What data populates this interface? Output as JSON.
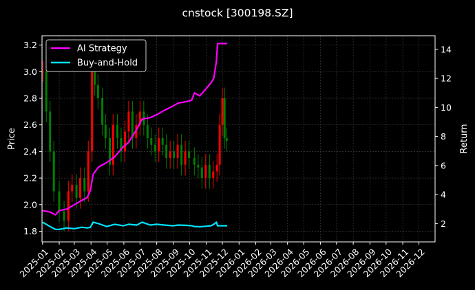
{
  "chart_data": {
    "type": "line",
    "title": "cnstock [300198.SZ]",
    "xlabel": "",
    "ylabel": "Price",
    "y2label": "Return",
    "grid": true,
    "legend_placement": "top-left",
    "x_ticks": [
      "2025-01",
      "2025-02",
      "2025-03",
      "2025-04",
      "2025-05",
      "2025-06",
      "2025-07",
      "2025-08",
      "2025-09",
      "2025-10",
      "2025-11",
      "2025-12",
      "2026-01",
      "2026-02",
      "2026-03",
      "2026-04",
      "2026-05",
      "2026-06",
      "2026-07",
      "2026-08",
      "2026-09",
      "2026-10",
      "2026-11",
      "2026-12"
    ],
    "x_range": [
      "2024-12-31",
      "2026-12-31"
    ],
    "ylim": [
      1.72,
      3.27
    ],
    "y_ticks": [
      1.8,
      2.0,
      2.2,
      2.4,
      2.6,
      2.8,
      3.0,
      3.2
    ],
    "y2lim": [
      0.74,
      14.94
    ],
    "y2_ticks": [
      2,
      4,
      6,
      8,
      10,
      12,
      14
    ],
    "colors": {
      "background": "#000000",
      "grid": "#3a3a3a",
      "up_candle": "#ff0000",
      "down_candle": "#008000",
      "ai_strategy": "#ff00ff",
      "buy_and_hold": "#00e5ff"
    },
    "price_series": {
      "name": "Price",
      "x": [
        "2025-01-02",
        "2025-01-08",
        "2025-01-15",
        "2025-01-22",
        "2025-02-01",
        "2025-02-10",
        "2025-02-18",
        "2025-02-25",
        "2025-03-05",
        "2025-03-12",
        "2025-03-20",
        "2025-03-27",
        "2025-04-03",
        "2025-04-08",
        "2025-04-14",
        "2025-04-22",
        "2025-04-28",
        "2025-05-06",
        "2025-05-12",
        "2025-05-20",
        "2025-05-27",
        "2025-06-03",
        "2025-06-10",
        "2025-06-17",
        "2025-06-24",
        "2025-07-01",
        "2025-07-08",
        "2025-07-15",
        "2025-07-22",
        "2025-07-29",
        "2025-08-05",
        "2025-08-12",
        "2025-08-19",
        "2025-08-26",
        "2025-09-02",
        "2025-09-09",
        "2025-09-16",
        "2025-09-23",
        "2025-09-30",
        "2025-10-10",
        "2025-10-17",
        "2025-10-24",
        "2025-10-31",
        "2025-11-07",
        "2025-11-14",
        "2025-11-21",
        "2025-11-26",
        "2025-12-01",
        "2025-12-05",
        "2025-12-09"
      ],
      "values": [
        3.0,
        2.7,
        2.4,
        2.1,
        1.95,
        1.88,
        2.1,
        2.15,
        2.05,
        2.2,
        2.1,
        2.4,
        3.0,
        2.9,
        2.8,
        2.6,
        2.5,
        2.3,
        2.6,
        2.5,
        2.4,
        2.55,
        2.7,
        2.5,
        2.6,
        2.7,
        2.6,
        2.5,
        2.45,
        2.4,
        2.5,
        2.45,
        2.35,
        2.4,
        2.35,
        2.45,
        2.3,
        2.4,
        2.35,
        2.3,
        2.28,
        2.2,
        2.3,
        2.2,
        2.25,
        2.3,
        2.6,
        2.8,
        2.5,
        2.48
      ]
    },
    "series": [
      {
        "name": "AI Strategy",
        "x": [
          "2025-01-01",
          "2025-01-15",
          "2025-01-25",
          "2025-02-01",
          "2025-02-15",
          "2025-03-01",
          "2025-03-15",
          "2025-03-25",
          "2025-03-31",
          "2025-04-05",
          "2025-04-15",
          "2025-04-30",
          "2025-05-15",
          "2025-05-31",
          "2025-06-10",
          "2025-06-25",
          "2025-07-05",
          "2025-07-20",
          "2025-08-01",
          "2025-08-15",
          "2025-08-31",
          "2025-09-10",
          "2025-09-25",
          "2025-10-05",
          "2025-10-10",
          "2025-10-20",
          "2025-11-01",
          "2025-11-10",
          "2025-11-15",
          "2025-11-20",
          "2025-11-22",
          "2025-12-10"
        ],
        "values": [
          2.9,
          2.8,
          2.6,
          2.9,
          3.0,
          3.3,
          3.6,
          3.8,
          4.3,
          5.4,
          5.9,
          6.2,
          6.6,
          7.3,
          7.6,
          8.5,
          9.2,
          9.3,
          9.5,
          9.8,
          10.1,
          10.3,
          10.4,
          10.5,
          11.0,
          10.8,
          11.3,
          11.7,
          12.0,
          13.2,
          14.4,
          14.4
        ]
      },
      {
        "name": "Buy-and-Hold",
        "x": [
          "2025-01-01",
          "2025-01-15",
          "2025-01-25",
          "2025-02-01",
          "2025-02-15",
          "2025-03-01",
          "2025-03-15",
          "2025-03-25",
          "2025-03-31",
          "2025-04-05",
          "2025-04-15",
          "2025-04-30",
          "2025-05-15",
          "2025-05-31",
          "2025-06-10",
          "2025-06-25",
          "2025-07-05",
          "2025-07-20",
          "2025-08-01",
          "2025-08-15",
          "2025-08-31",
          "2025-09-10",
          "2025-09-25",
          "2025-10-05",
          "2025-10-10",
          "2025-10-20",
          "2025-11-01",
          "2025-11-10",
          "2025-11-15",
          "2025-11-20",
          "2025-11-22",
          "2025-12-10"
        ],
        "values": [
          2.1,
          1.8,
          1.6,
          1.6,
          1.7,
          1.65,
          1.75,
          1.7,
          1.75,
          2.1,
          2.0,
          1.8,
          1.95,
          1.85,
          1.95,
          1.9,
          2.1,
          1.9,
          1.95,
          1.9,
          1.85,
          1.9,
          1.88,
          1.85,
          1.8,
          1.78,
          1.82,
          1.85,
          1.95,
          2.1,
          1.85,
          1.85
        ]
      }
    ]
  }
}
